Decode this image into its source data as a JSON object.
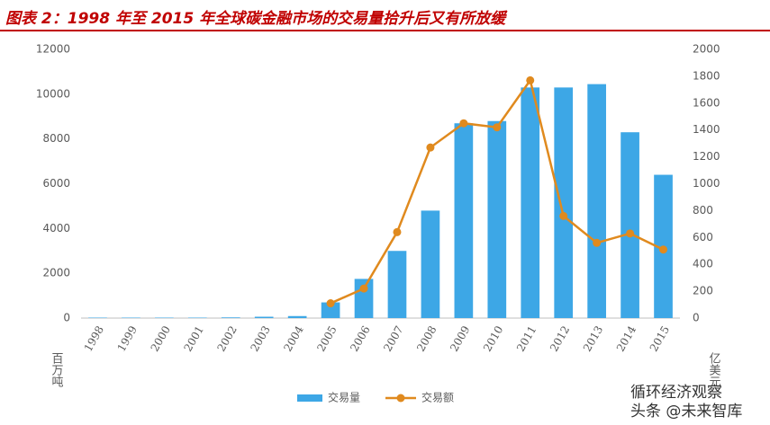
{
  "chart_data": {
    "type": "bar-line",
    "title": "图表 2：1998 年至 2015 年全球碳金融市场的交易量拾升后又有所放缓",
    "y_unit": "百万吨",
    "y2_unit": "亿美元",
    "categories": [
      "1998",
      "1999",
      "2000",
      "2001",
      "2002",
      "2003",
      "2004",
      "2005",
      "2006",
      "2007",
      "2008",
      "2009",
      "2010",
      "2011",
      "2012",
      "2013",
      "2014",
      "2015"
    ],
    "series": [
      {
        "name": "交易量",
        "type": "bar",
        "color": "#3da7e6",
        "values": [
          20,
          20,
          20,
          20,
          30,
          60,
          90,
          700,
          1750,
          3000,
          4800,
          8700,
          8800,
          10300,
          10300,
          10450,
          8300,
          6400
        ]
      },
      {
        "name": "交易额",
        "type": "line",
        "axis": "y2",
        "color": "#e08a1e",
        "values": [
          null,
          null,
          null,
          null,
          null,
          null,
          null,
          110,
          220,
          640,
          1270,
          1450,
          1420,
          1770,
          760,
          560,
          630,
          510
        ]
      }
    ],
    "ylim": [
      0,
      12000
    ],
    "yticks": [
      0,
      2000,
      4000,
      6000,
      8000,
      10000,
      12000
    ],
    "y2lim": [
      0,
      2000
    ],
    "y2ticks": [
      0,
      200,
      400,
      600,
      800,
      1000,
      1200,
      1400,
      1600,
      1800,
      2000
    ],
    "grid": false,
    "watermark": [
      "循环经济观察",
      "头条 @未来智库"
    ]
  }
}
